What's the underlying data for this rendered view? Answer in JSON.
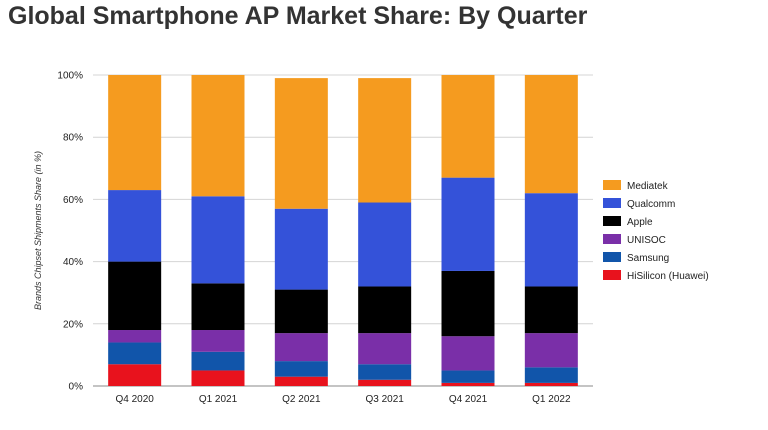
{
  "chart_data": {
    "type": "bar",
    "stacked": true,
    "title": "Global Smartphone AP Market Share: By Quarter",
    "xlabel": "",
    "ylabel": "Brands Chipset Shipments Share (in %)",
    "ylim": [
      0,
      100
    ],
    "y_tick_labels": [
      "0%",
      "20%",
      "40%",
      "60%",
      "80%",
      "100%"
    ],
    "grid": true,
    "legend_position": "right",
    "categories": [
      "Q4 2020",
      "Q1 2021",
      "Q2 2021",
      "Q3 2021",
      "Q4 2021",
      "Q1 2022"
    ],
    "series": [
      {
        "name": "HiSilicon (Huawei)",
        "color": "#e8121d",
        "values": [
          7,
          5,
          3,
          2,
          1,
          1
        ]
      },
      {
        "name": "Samsung",
        "color": "#1155aa",
        "values": [
          7,
          6,
          5,
          5,
          4,
          5
        ]
      },
      {
        "name": "UNISOC",
        "color": "#7a2fa8",
        "values": [
          4,
          7,
          9,
          10,
          11,
          11
        ]
      },
      {
        "name": "Apple",
        "color": "#000000",
        "values": [
          22,
          15,
          14,
          15,
          21,
          15
        ]
      },
      {
        "name": "Qualcomm",
        "color": "#3452d9",
        "values": [
          23,
          28,
          26,
          27,
          30,
          30
        ]
      },
      {
        "name": "Mediatek",
        "color": "#f59b1f",
        "values": [
          37,
          39,
          42,
          40,
          33,
          38
        ]
      }
    ]
  }
}
